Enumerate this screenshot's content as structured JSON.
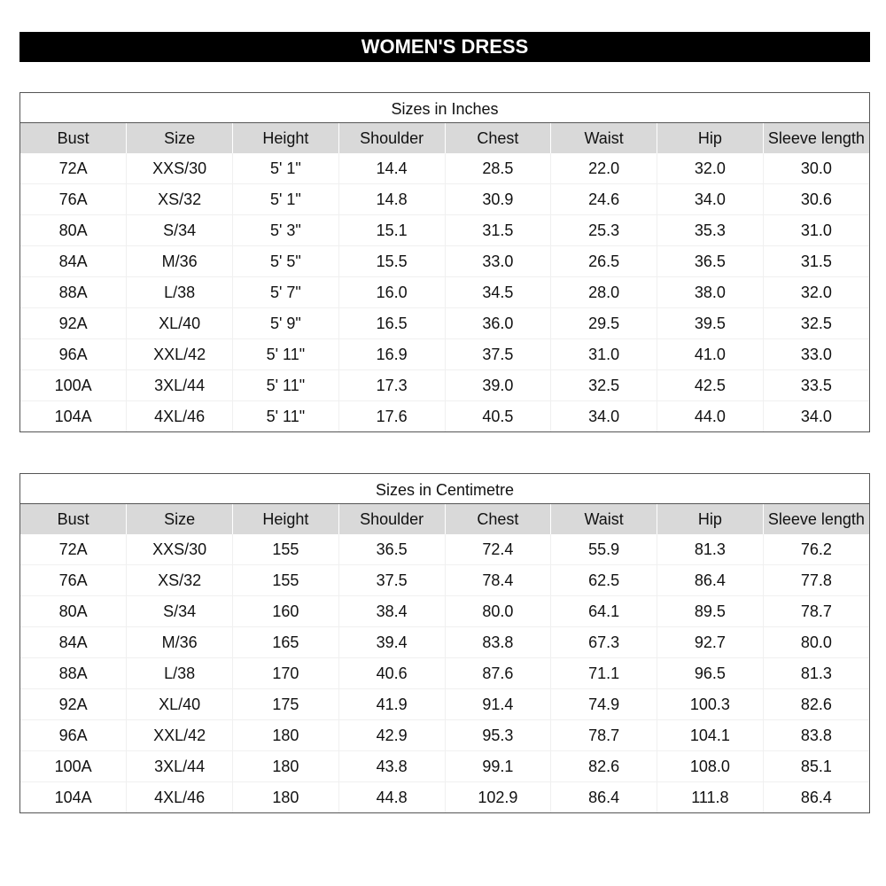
{
  "title": "WOMEN'S DRESS",
  "columns": [
    "Bust",
    "Size",
    "Height",
    "Shoulder",
    "Chest",
    "Waist",
    "Hip",
    "Sleeve length"
  ],
  "tables": [
    {
      "caption": "Sizes in Inches",
      "rows": [
        [
          "72A",
          "XXS/30",
          "5' 1\"",
          "14.4",
          "28.5",
          "22.0",
          "32.0",
          "30.0"
        ],
        [
          "76A",
          "XS/32",
          "5' 1\"",
          "14.8",
          "30.9",
          "24.6",
          "34.0",
          "30.6"
        ],
        [
          "80A",
          "S/34",
          "5' 3\"",
          "15.1",
          "31.5",
          "25.3",
          "35.3",
          "31.0"
        ],
        [
          "84A",
          "M/36",
          "5' 5\"",
          "15.5",
          "33.0",
          "26.5",
          "36.5",
          "31.5"
        ],
        [
          "88A",
          "L/38",
          "5' 7\"",
          "16.0",
          "34.5",
          "28.0",
          "38.0",
          "32.0"
        ],
        [
          "92A",
          "XL/40",
          "5' 9\"",
          "16.5",
          "36.0",
          "29.5",
          "39.5",
          "32.5"
        ],
        [
          "96A",
          "XXL/42",
          "5' 11\"",
          "16.9",
          "37.5",
          "31.0",
          "41.0",
          "33.0"
        ],
        [
          "100A",
          "3XL/44",
          "5' 11\"",
          "17.3",
          "39.0",
          "32.5",
          "42.5",
          "33.5"
        ],
        [
          "104A",
          "4XL/46",
          "5' 11\"",
          "17.6",
          "40.5",
          "34.0",
          "44.0",
          "34.0"
        ]
      ]
    },
    {
      "caption": "Sizes in Centimetre",
      "rows": [
        [
          "72A",
          "XXS/30",
          "155",
          "36.5",
          "72.4",
          "55.9",
          "81.3",
          "76.2"
        ],
        [
          "76A",
          "XS/32",
          "155",
          "37.5",
          "78.4",
          "62.5",
          "86.4",
          "77.8"
        ],
        [
          "80A",
          "S/34",
          "160",
          "38.4",
          "80.0",
          "64.1",
          "89.5",
          "78.7"
        ],
        [
          "84A",
          "M/36",
          "165",
          "39.4",
          "83.8",
          "67.3",
          "92.7",
          "80.0"
        ],
        [
          "88A",
          "L/38",
          "170",
          "40.6",
          "87.6",
          "71.1",
          "96.5",
          "81.3"
        ],
        [
          "92A",
          "XL/40",
          "175",
          "41.9",
          "91.4",
          "74.9",
          "100.3",
          "82.6"
        ],
        [
          "96A",
          "XXL/42",
          "180",
          "42.9",
          "95.3",
          "78.7",
          "104.1",
          "83.8"
        ],
        [
          "100A",
          "3XL/44",
          "180",
          "43.8",
          "99.1",
          "82.6",
          "108.0",
          "85.1"
        ],
        [
          "104A",
          "4XL/46",
          "180",
          "44.8",
          "102.9",
          "86.4",
          "111.8",
          "86.4"
        ]
      ]
    }
  ]
}
